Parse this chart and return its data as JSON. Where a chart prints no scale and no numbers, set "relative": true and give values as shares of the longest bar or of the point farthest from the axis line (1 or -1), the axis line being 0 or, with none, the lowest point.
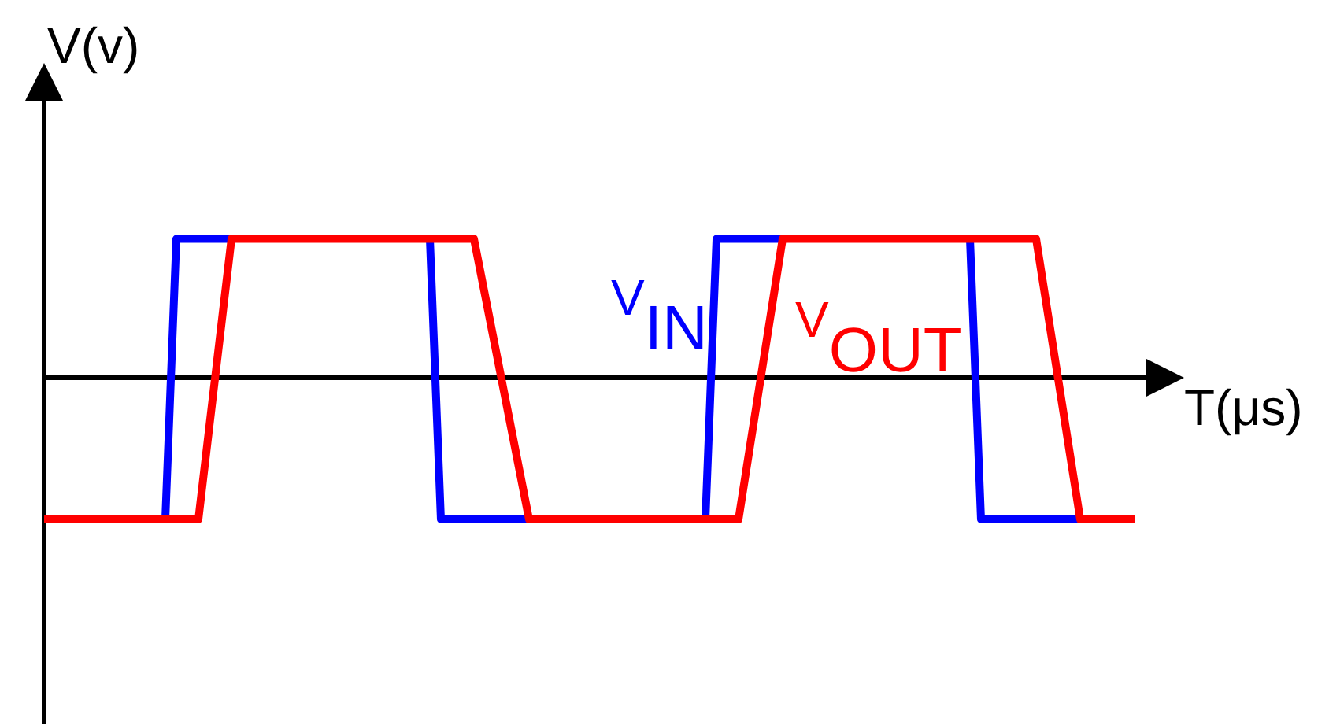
{
  "chart_data": {
    "type": "line",
    "relative": true,
    "xlabel": "T(μs)",
    "ylabel": "V(v)",
    "line_style": "solid",
    "categories": [
      null,
      null,
      null,
      null,
      null,
      null,
      null,
      null,
      null,
      null,
      null,
      null,
      null,
      null,
      null,
      null,
      null,
      null,
      null,
      null,
      null,
      null,
      null,
      null,
      null,
      null,
      null,
      null,
      null,
      null,
      null,
      null,
      null,
      null,
      null,
      null,
      null,
      null,
      null,
      null,
      null,
      null,
      null,
      null,
      null,
      null,
      null,
      null,
      null,
      null,
      null,
      null,
      null,
      null,
      null,
      null,
      null,
      null,
      null,
      null,
      null,
      null,
      null,
      null,
      null,
      null,
      null,
      null,
      null,
      null,
      null,
      null,
      null,
      null,
      null,
      null,
      null,
      null,
      null,
      null,
      null,
      null,
      null,
      null,
      null,
      null,
      null,
      null,
      null,
      null,
      null,
      null,
      null,
      null,
      null,
      null,
      null,
      null,
      null,
      null
    ],
    "series": [
      {
        "name": "V$_{IN}$",
        "color": "#0000ff",
        "values": [
          null,
          null,
          null,
          null,
          null,
          null,
          null,
          null,
          null,
          null,
          null,
          -1,
          0.98,
          0.98,
          0.98,
          0.98,
          0.98,
          0.98,
          null,
          null,
          null,
          null,
          null,
          null,
          null,
          null,
          null,
          null,
          null,
          null,
          null,
          null,
          null,
          null,
          null,
          0.98,
          -1,
          -1,
          -1,
          -1,
          -1,
          -1,
          -1,
          -1,
          -1,
          null,
          null,
          null,
          null,
          null,
          null,
          null,
          null,
          null,
          null,
          null,
          null,
          null,
          null,
          null,
          -1,
          0.98,
          0.98,
          0.98,
          0.98,
          0.98,
          0.98,
          0.98,
          null,
          null,
          null,
          null,
          null,
          null,
          null,
          null,
          null,
          null,
          null,
          null,
          null,
          null,
          null,
          null,
          0.98,
          -1,
          -1,
          -1,
          -1,
          -1,
          -1,
          -1,
          -1,
          -1,
          -1,
          null,
          null,
          null,
          null,
          null
        ]
      },
      {
        "name": "V$_{OUT}$",
        "color": "#ff0000",
        "values": [
          -1,
          -1,
          -1,
          -1,
          -1,
          -1,
          -1,
          -1,
          -1,
          -1,
          -1,
          -1,
          -1,
          -1,
          -1,
          -0.34,
          0.32,
          0.98,
          0.98,
          0.98,
          0.98,
          0.98,
          0.98,
          0.98,
          0.98,
          0.98,
          0.98,
          0.98,
          0.98,
          0.98,
          0.98,
          0.98,
          0.98,
          0.98,
          0.98,
          0.98,
          0.98,
          0.98,
          0.98,
          0.98,
          0.584,
          0.188,
          -0.208,
          -0.604,
          -1,
          -1,
          -1,
          -1,
          -1,
          -1,
          -1,
          -1,
          -1,
          -1,
          -1,
          -1,
          -1,
          -1,
          -1,
          -1,
          -1,
          -1,
          -1,
          -1,
          -0.505,
          -0.01,
          0.485,
          0.98,
          0.98,
          0.98,
          0.98,
          0.98,
          0.98,
          0.98,
          0.98,
          0.98,
          0.98,
          0.98,
          0.98,
          0.98,
          0.98,
          0.98,
          0.98,
          0.98,
          0.98,
          0.98,
          0.98,
          0.98,
          0.98,
          0.98,
          0.98,
          0.485,
          -0.01,
          -0.505,
          -1,
          -1,
          -1,
          -1,
          -1,
          -1
        ]
      }
    ]
  }
}
